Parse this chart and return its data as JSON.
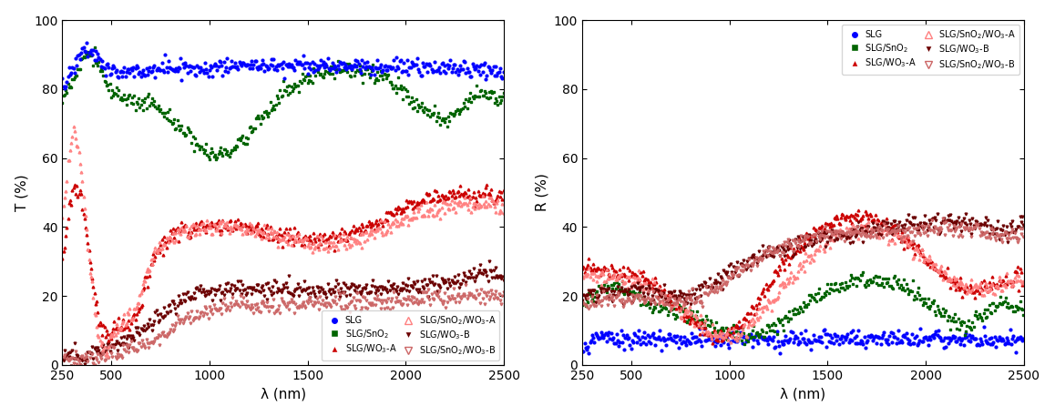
{
  "colors": {
    "SLG": "#0000FF",
    "SLG_SnO2": "#006400",
    "SLG_WO3_A": "#CC0000",
    "SLG_WO3_B": "#6B0000",
    "SLG_SnO2_WO3_A": "#FF8080",
    "SLG_SnO2_WO3_B": "#CC6666"
  },
  "left_ylabel": "T (%)",
  "right_ylabel": "R (%)",
  "xlabel": "λ (nm)",
  "ylim": [
    0,
    100
  ],
  "yticks": [
    0,
    20,
    40,
    60,
    80,
    100
  ],
  "xticks": [
    250,
    500,
    1000,
    1500,
    2000,
    2500
  ]
}
